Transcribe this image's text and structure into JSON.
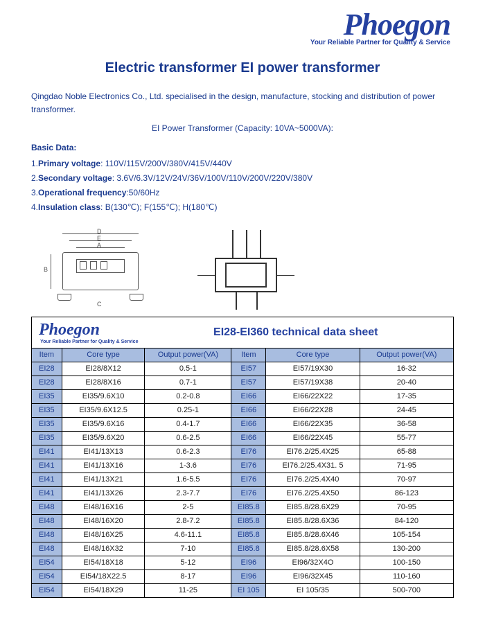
{
  "brand": {
    "name": "Phoegon",
    "tagline": "Your Reliable Partner for Quality & Service"
  },
  "title": "Electric transformer EI power transformer",
  "intro": "Qingdao Noble Electronics Co., Ltd. specialised in the design, manufacture, stocking and distribution of power transformer.",
  "capacity_line": "EI Power Transformer (Capacity: 10VA~5000VA):",
  "basic_data_label": "Basic Data:",
  "specs": [
    {
      "num": "1.",
      "label": "Primary voltage",
      "value": ": 110V/115V/200V/380V/415V/440V"
    },
    {
      "num": "2.",
      "label": "Secondary voltage",
      "value": ": 3.6V/6.3V/12V/24V/36V/100V/110V/200V/220V/380V"
    },
    {
      "num": "3.",
      "label": "Operational frequency",
      "value": ":50/60Hz"
    },
    {
      "num": "4.",
      "label": "Insulation class",
      "value": ": B(130℃);  F(155℃);   H(180℃)"
    }
  ],
  "diagram_labels": {
    "d": "D",
    "e": "E",
    "a": "A",
    "b": "B",
    "c": "C"
  },
  "datasheet": {
    "brand": "Phoegon",
    "tagline": "Your Reliable Partner for Quality & Service",
    "title": "EI28-EI360 technical data sheet",
    "columns": [
      "Item",
      "Core type",
      "Output power(VA)",
      "Item",
      "Core type",
      "Output power(VA)"
    ],
    "rows": [
      [
        "EI28",
        "EI28/8X12",
        "0.5-1",
        "EI57",
        "EI57/19X30",
        "16-32"
      ],
      [
        "EI28",
        "EI28/8X16",
        "0.7-1",
        "EI57",
        "EI57/19X38",
        "20-40"
      ],
      [
        "EI35",
        "EI35/9.6X10",
        "0.2-0.8",
        "EI66",
        "EI66/22X22",
        "17-35"
      ],
      [
        "EI35",
        "EI35/9.6X12.5",
        "0.25-1",
        "EI66",
        "EI66/22X28",
        "24-45"
      ],
      [
        "EI35",
        "EI35/9.6X16",
        "0.4-1.7",
        "EI66",
        "EI66/22X35",
        "36-58"
      ],
      [
        "EI35",
        "EI35/9.6X20",
        "0.6-2.5",
        "EI66",
        "EI66/22X45",
        "55-77"
      ],
      [
        "EI41",
        "EI41/13X13",
        "0.6-2.3",
        "EI76",
        "EI76.2/25.4X25",
        "65-88"
      ],
      [
        "EI41",
        "EI41/13X16",
        "1-3.6",
        "EI76",
        "EI76.2/25.4X31. 5",
        "71-95"
      ],
      [
        "EI41",
        "EI41/13X21",
        "1.6-5.5",
        "EI76",
        "EI76.2/25.4X40",
        "70-97"
      ],
      [
        "EI41",
        "EI41/13X26",
        "2.3-7.7",
        "EI76",
        "EI76.2/25.4X50",
        "86-123"
      ],
      [
        "EI48",
        "EI48/16X16",
        "2-5",
        "EI85.8",
        "EI85.8/28.6X29",
        "70-95"
      ],
      [
        "EI48",
        "EI48/16X20",
        "2.8-7.2",
        "EI85.8",
        "EI85.8/28.6X36",
        "84-120"
      ],
      [
        "EI48",
        "EI48/16X25",
        "4.6-11.1",
        "EI85.8",
        "EI85.8/28.6X46",
        "105-154"
      ],
      [
        "EI48",
        "EI48/16X32",
        "7-10",
        "EI85.8",
        "EI85.8/28.6X58",
        "130-200"
      ],
      [
        "EI54",
        "EI54/18X18",
        "5-12",
        "EI96",
        "EI96/32X4O",
        "100-150"
      ],
      [
        "EI54",
        "EI54/18X22.5",
        "8-17",
        "EI96",
        "EI96/32X45",
        "110-160"
      ],
      [
        "EI54",
        "EI54/18X29",
        "11-25",
        "EI 105",
        "EI 105/35",
        "500-700"
      ]
    ]
  },
  "colors": {
    "brand_blue": "#2541a0",
    "text_blue": "#1a3a8f",
    "header_bg": "#a8bde0"
  }
}
